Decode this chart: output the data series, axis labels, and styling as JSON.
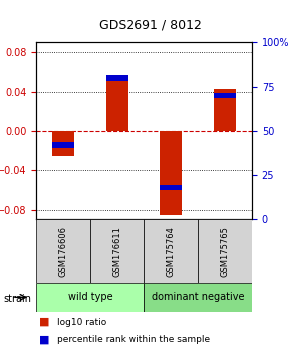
{
  "title": "GDS2691 / 8012",
  "samples": [
    "GSM176606",
    "GSM176611",
    "GSM175764",
    "GSM175765"
  ],
  "log10_ratios": [
    -0.025,
    0.057,
    -0.085,
    0.043
  ],
  "percentile_ranks": [
    42,
    80,
    18,
    70
  ],
  "ylim": [
    -0.09,
    0.09
  ],
  "yticks_left": [
    -0.08,
    -0.04,
    0,
    0.04,
    0.08
  ],
  "yticks_right": [
    0,
    25,
    50,
    75,
    100
  ],
  "ylabel_left_color": "#cc0000",
  "ylabel_right_color": "#0000cc",
  "bar_color": "#cc2200",
  "pct_color": "#0000cc",
  "zero_line_color": "#cc0000",
  "grid_color": "#000000",
  "groups": [
    {
      "label": "wild type",
      "samples": [
        0,
        1
      ],
      "color": "#aaffaa"
    },
    {
      "label": "dominant negative",
      "samples": [
        2,
        3
      ],
      "color": "#88dd88"
    }
  ],
  "group_label_x": "strain",
  "legend_items": [
    {
      "color": "#cc2200",
      "label": "log10 ratio"
    },
    {
      "color": "#0000cc",
      "label": "percentile rank within the sample"
    }
  ],
  "bar_width": 0.4,
  "background_color": "#ffffff",
  "plot_bg_color": "#ffffff"
}
